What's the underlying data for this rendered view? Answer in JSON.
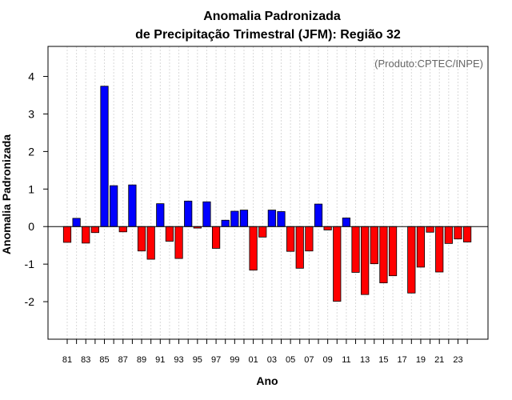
{
  "chart_data": {
    "type": "bar",
    "title": "Anomalia Padronizada",
    "subtitle": "de Precipitação Trimestral (JFM): Região 32",
    "xlabel": "Ano",
    "ylabel": "Anomalia Padronizada",
    "credit": "(Produto:CPTEC/INPE)",
    "ylim": [
      -3,
      4.8
    ],
    "yticks": [
      -2,
      -1,
      0,
      1,
      2,
      3,
      4
    ],
    "grid": "vertical dotted",
    "categories": [
      "81",
      "82",
      "83",
      "84",
      "85",
      "86",
      "87",
      "88",
      "89",
      "90",
      "91",
      "92",
      "93",
      "94",
      "95",
      "96",
      "97",
      "98",
      "99",
      "00",
      "01",
      "02",
      "03",
      "04",
      "05",
      "06",
      "07",
      "08",
      "09",
      "10",
      "11",
      "12",
      "13",
      "14",
      "15",
      "16",
      "17",
      "18",
      "19",
      "20",
      "21",
      "22",
      "23",
      "24"
    ],
    "xtick_labels": [
      "81",
      "83",
      "85",
      "87",
      "89",
      "91",
      "93",
      "95",
      "97",
      "99",
      "01",
      "03",
      "05",
      "07",
      "09",
      "11",
      "13",
      "15",
      "17",
      "19",
      "21",
      "23"
    ],
    "values": [
      -0.42,
      0.22,
      -0.44,
      -0.16,
      3.74,
      1.09,
      -0.14,
      1.11,
      -0.65,
      -0.87,
      0.61,
      -0.39,
      -0.85,
      0.68,
      -0.04,
      0.66,
      -0.58,
      0.17,
      0.41,
      0.44,
      -1.16,
      -0.28,
      0.44,
      0.4,
      -0.66,
      -1.11,
      -0.65,
      0.6,
      -0.09,
      -1.99,
      0.23,
      -1.22,
      -1.81,
      -0.99,
      -1.5,
      -1.31,
      0.0,
      -1.77,
      -1.08,
      -0.15,
      -1.21,
      -0.45,
      -0.33,
      -0.41
    ],
    "colors": {
      "positive": "#0000ff",
      "negative": "#ff0000",
      "outline": "#000000",
      "zero_line": "#000000",
      "grid": "#d9d9d9",
      "credit": "#666666"
    }
  }
}
